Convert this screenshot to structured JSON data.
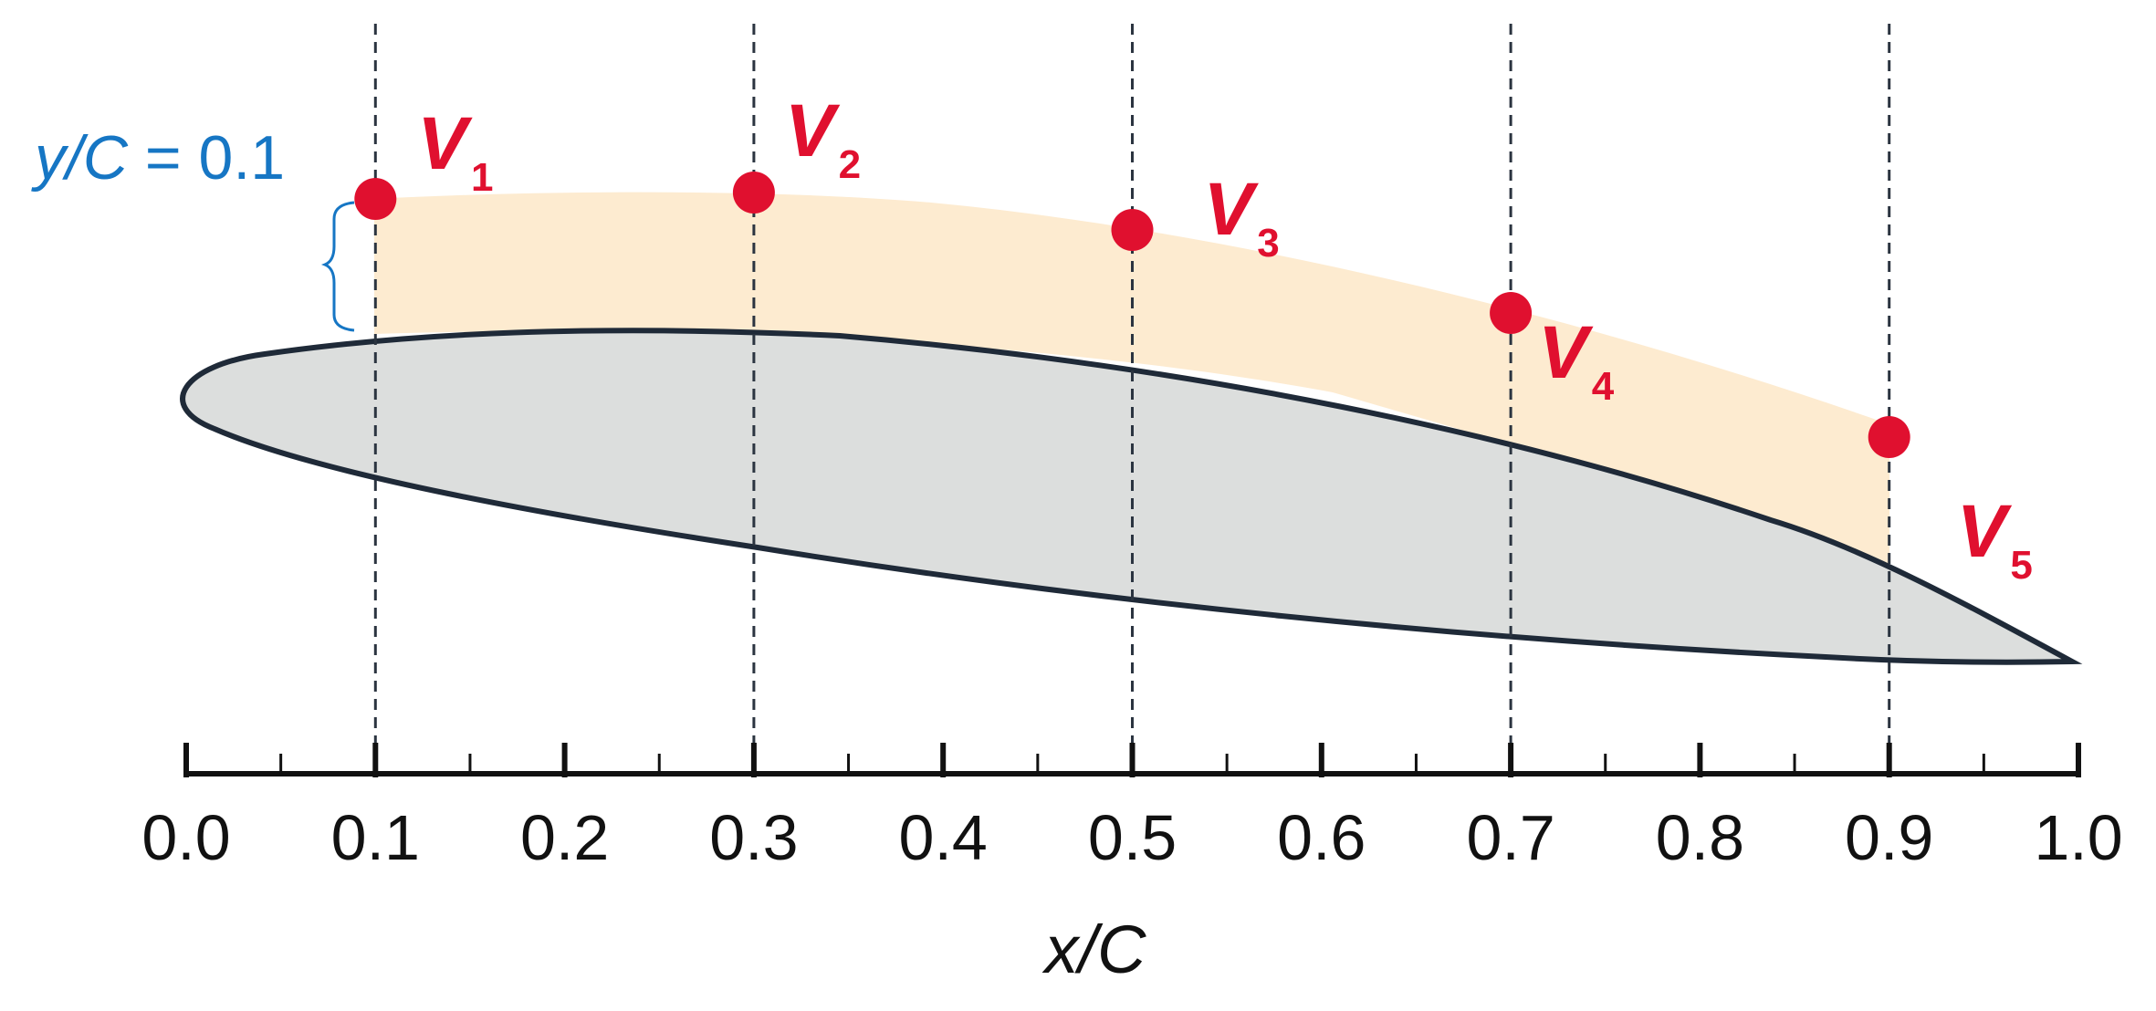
{
  "x_axis": {
    "label": "x/C",
    "range": [
      0.0,
      1.0
    ],
    "major_step": 0.1,
    "minor_step": 0.05,
    "tick_labels": [
      "0.0",
      "0.1",
      "0.2",
      "0.3",
      "0.4",
      "0.5",
      "0.6",
      "0.7",
      "0.8",
      "0.9",
      "1.0"
    ]
  },
  "offset_annotation": {
    "variable": "y/C",
    "equals": " = ",
    "value": "0.1"
  },
  "stations": [
    {
      "x": 0.1,
      "label": "V",
      "sub": "1"
    },
    {
      "x": 0.3,
      "label": "V",
      "sub": "2"
    },
    {
      "x": 0.5,
      "label": "V",
      "sub": "3"
    },
    {
      "x": 0.7,
      "label": "V",
      "sub": "4"
    },
    {
      "x": 0.9,
      "label": "V",
      "sub": "5"
    }
  ],
  "colors": {
    "airfoil_fill": "#dcdedd",
    "airfoil_stroke": "#1f2a38",
    "band_fill": "#fdebd0",
    "station_point": "#e0102f",
    "station_line": "#2b3440",
    "offset_annotation": "#1676c4",
    "axis": "#111111"
  }
}
